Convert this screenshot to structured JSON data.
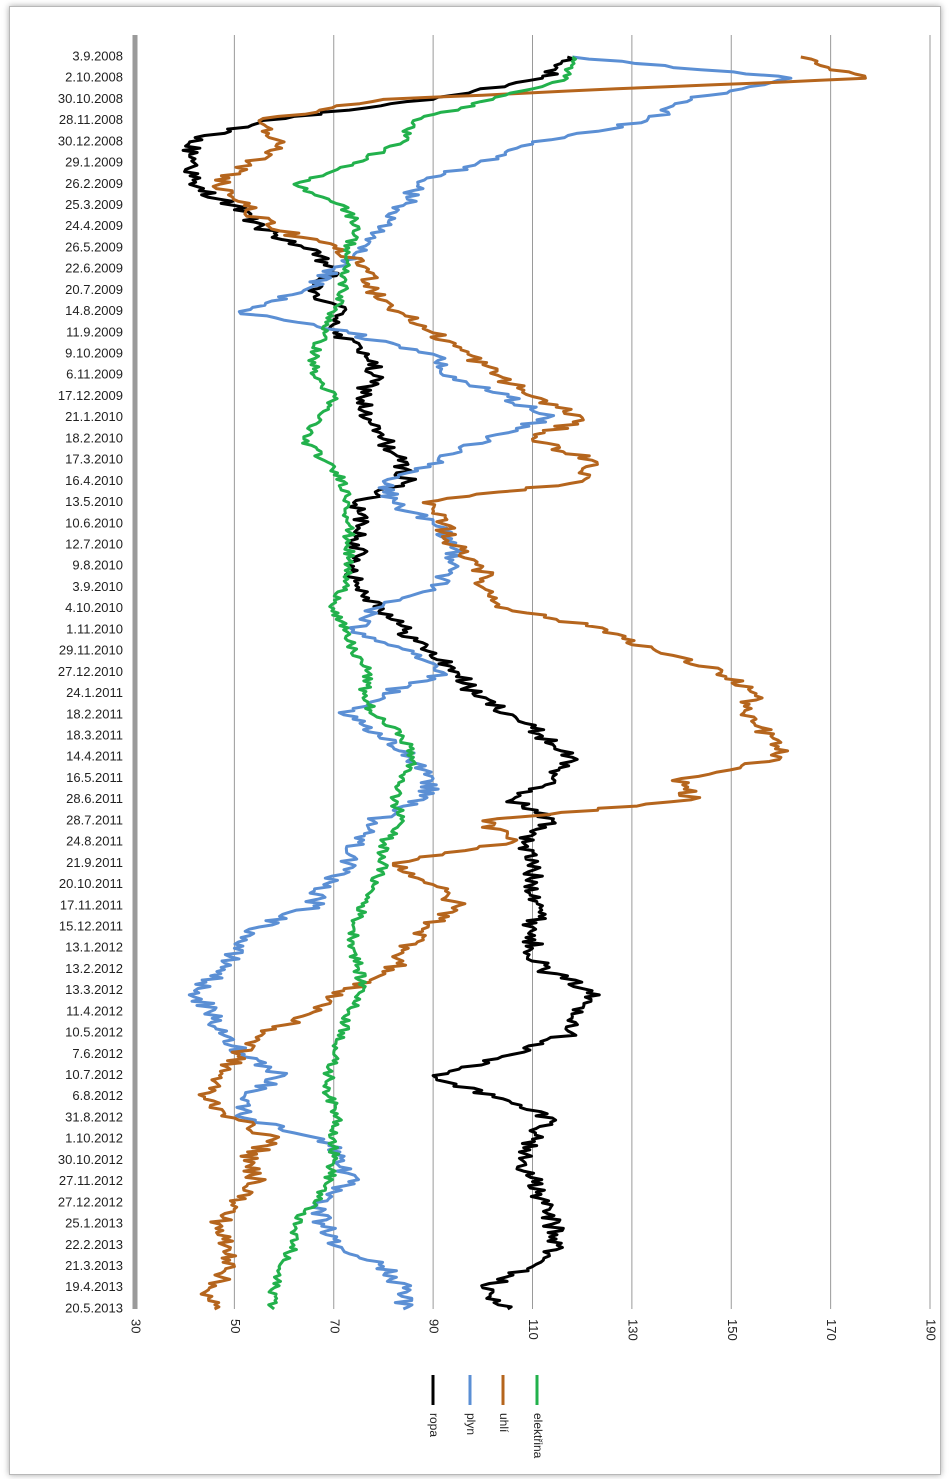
{
  "chart_data": {
    "type": "line",
    "orientation": "horizontal-values (rotated chart: dates down the left, values along the bottom)",
    "categories": [
      "3.9.2008",
      "2.10.2008",
      "30.10.2008",
      "28.11.2008",
      "30.12.2008",
      "29.1.2009",
      "26.2.2009",
      "25.3.2009",
      "24.4.2009",
      "26.5.2009",
      "22.6.2009",
      "20.7.2009",
      "14.8.2009",
      "11.9.2009",
      "9.10.2009",
      "6.11.2009",
      "17.12.2009",
      "21.1.2010",
      "18.2.2010",
      "17.3.2010",
      "16.4.2010",
      "13.5.2010",
      "10.6.2010",
      "12.7.2010",
      "9.8.2010",
      "3.9.2010",
      "4.10.2010",
      "1.11.2010",
      "29.11.2010",
      "27.12.2010",
      "24.1.2011",
      "18.2.2011",
      "18.3.2011",
      "14.4.2011",
      "16.5.2011",
      "28.6.2011",
      "28.7.2011",
      "24.8.2011",
      "21.9.2011",
      "20.10.2011",
      "17.11.2011",
      "15.12.2011",
      "13.1.2012",
      "13.2.2012",
      "13.3.2012",
      "11.4.2012",
      "10.5.2012",
      "7.6.2012",
      "10.7.2012",
      "6.8.2012",
      "31.8.2012",
      "1.10.2012",
      "30.10.2012",
      "27.11.2012",
      "27.12.2012",
      "25.1.2013",
      "22.2.2013",
      "21.3.2013",
      "19.4.2013",
      "20.5.2013"
    ],
    "value_axis": {
      "min": 30,
      "max": 190,
      "ticks": [
        "30",
        "50",
        "70",
        "90",
        "110",
        "130",
        "150",
        "170",
        "190"
      ],
      "gridlines": true
    },
    "legend": {
      "placement": "bottom"
    },
    "series": [
      {
        "name": "ropa",
        "color": "#000000",
        "values": [
          117,
          112,
          90,
          55,
          41,
          42,
          41,
          50,
          55,
          64,
          70,
          65,
          72,
          70,
          77,
          78,
          76,
          76,
          80,
          83,
          85,
          74,
          76,
          75,
          74,
          75,
          80,
          84,
          89,
          95,
          98,
          106,
          112,
          118,
          114,
          106,
          114,
          108,
          110,
          110,
          112,
          110,
          110,
          112,
          122,
          120,
          118,
          106,
          90,
          102,
          114,
          110,
          108,
          110,
          112,
          114,
          115,
          110,
          100,
          105
        ]
      },
      {
        "name": "plyn",
        "color": "#5b8fd4",
        "values": [
          118,
          162,
          142,
          133,
          110,
          99,
          87,
          84,
          79,
          75,
          70,
          64,
          51,
          73,
          90,
          92,
          105,
          113,
          101,
          91,
          80,
          82,
          90,
          94,
          95,
          90,
          78,
          74,
          86,
          92,
          80,
          72,
          79,
          86,
          90,
          88,
          78,
          75,
          73,
          68,
          66,
          55,
          50,
          48,
          42,
          45,
          47,
          52,
          60,
          52,
          52,
          68,
          72,
          73,
          66,
          68,
          70,
          80,
          84,
          84
        ]
      },
      {
        "name": "uhlí",
        "color": "#b5651d",
        "values": [
          164,
          177,
          80,
          55,
          60,
          53,
          47,
          52,
          57,
          70,
          77,
          78,
          83,
          90,
          97,
          103,
          110,
          120,
          110,
          122,
          120,
          88,
          92,
          94,
          100,
          100,
          105,
          125,
          135,
          148,
          155,
          152,
          158,
          160,
          140,
          142,
          100,
          106,
          82,
          90,
          95,
          89,
          85,
          82,
          72,
          66,
          56,
          51,
          47,
          44,
          50,
          58,
          52,
          55,
          50,
          47,
          48,
          50,
          45,
          46
        ]
      },
      {
        "name": "elektřina",
        "color": "#22b14c",
        "values": [
          118,
          117,
          102,
          86,
          84,
          74,
          62,
          72,
          75,
          73,
          72,
          72,
          70,
          68,
          66,
          66,
          70,
          67,
          64,
          68,
          72,
          73,
          73,
          73,
          73,
          72,
          70,
          72,
          74,
          77,
          76,
          78,
          84,
          86,
          84,
          82,
          84,
          80,
          80,
          78,
          76,
          74,
          74,
          75,
          76,
          73,
          72,
          70,
          69,
          69,
          71,
          70,
          70,
          69,
          66,
          62,
          62,
          59,
          58,
          58
        ]
      }
    ]
  }
}
